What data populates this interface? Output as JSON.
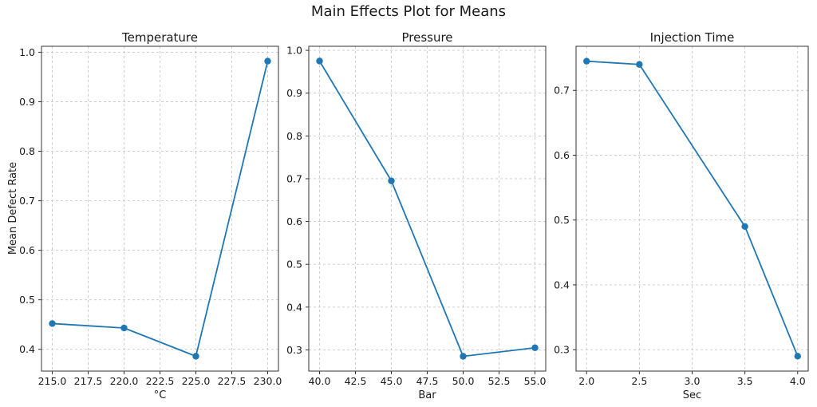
{
  "figure": {
    "title": "Main Effects Plot for Means",
    "ylabel": "Mean Defect Rate",
    "colors": {
      "line": "#1f77b4",
      "marker": "#1f77b4",
      "grid": "#c9c9c9",
      "spine": "#333333",
      "text": "#1a1a1a",
      "background": "#ffffff"
    }
  },
  "chart_data": [
    {
      "type": "line",
      "title": "Temperature",
      "xlabel": "°C",
      "ylabel": "Mean Defect Rate",
      "x": [
        215.0,
        220.0,
        225.0,
        230.0
      ],
      "y": [
        0.452,
        0.443,
        0.386,
        0.982
      ],
      "xlim": [
        214.25,
        230.75
      ],
      "ylim": [
        0.356,
        1.012
      ],
      "xticks": [
        215.0,
        217.5,
        220.0,
        222.5,
        225.0,
        227.5,
        230.0
      ],
      "xtick_labels": [
        "215.0",
        "217.5",
        "220.0",
        "222.5",
        "225.0",
        "227.5",
        "230.0"
      ],
      "yticks": [
        0.4,
        0.5,
        0.6,
        0.7,
        0.8,
        0.9,
        1.0
      ],
      "ytick_labels": [
        "0.4",
        "0.5",
        "0.6",
        "0.7",
        "0.8",
        "0.9",
        "1.0"
      ],
      "grid": true,
      "legend": "none",
      "marker": "circle"
    },
    {
      "type": "line",
      "title": "Pressure",
      "xlabel": "Bar",
      "ylabel": "Mean Defect Rate",
      "x": [
        40.0,
        45.0,
        50.0,
        55.0
      ],
      "y": [
        0.975,
        0.695,
        0.285,
        0.305
      ],
      "xlim": [
        39.25,
        55.75
      ],
      "ylim": [
        0.2505,
        1.0095
      ],
      "xticks": [
        40.0,
        42.5,
        45.0,
        47.5,
        50.0,
        52.5,
        55.0
      ],
      "xtick_labels": [
        "40.0",
        "42.5",
        "45.0",
        "47.5",
        "50.0",
        "52.5",
        "55.0"
      ],
      "yticks": [
        0.3,
        0.4,
        0.5,
        0.6,
        0.7,
        0.8,
        0.9,
        1.0
      ],
      "ytick_labels": [
        "0.3",
        "0.4",
        "0.5",
        "0.6",
        "0.7",
        "0.8",
        "0.9",
        "1.0"
      ],
      "grid": true,
      "legend": "none",
      "marker": "circle"
    },
    {
      "type": "line",
      "title": "Injection Time",
      "xlabel": "Sec",
      "ylabel": "Mean Defect Rate",
      "x": [
        2.0,
        2.5,
        3.5,
        4.0
      ],
      "y": [
        0.745,
        0.74,
        0.49,
        0.29
      ],
      "xlim": [
        1.9,
        4.1
      ],
      "ylim": [
        0.267,
        0.768
      ],
      "xticks": [
        2.0,
        2.5,
        3.0,
        3.5,
        4.0
      ],
      "xtick_labels": [
        "2.0",
        "2.5",
        "3.0",
        "3.5",
        "4.0"
      ],
      "yticks": [
        0.3,
        0.4,
        0.5,
        0.6,
        0.7
      ],
      "ytick_labels": [
        "0.3",
        "0.4",
        "0.5",
        "0.6",
        "0.7"
      ],
      "grid": true,
      "legend": "none",
      "marker": "circle"
    }
  ]
}
